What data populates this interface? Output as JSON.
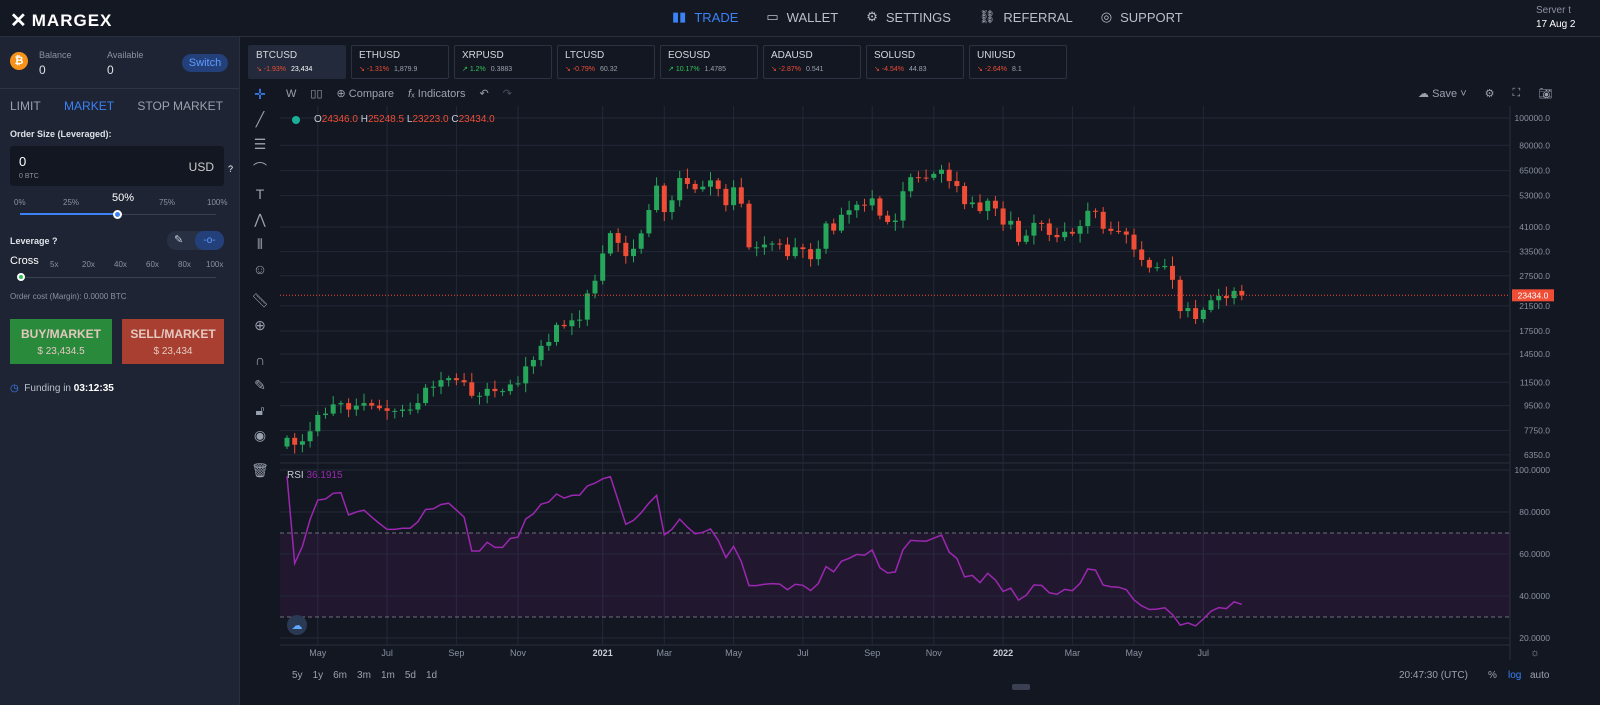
{
  "header": {
    "brand": "MARGEX",
    "nav": [
      {
        "label": "TRADE",
        "icon": "bar-chart-icon"
      },
      {
        "label": "WALLET",
        "icon": "wallet-icon"
      },
      {
        "label": "SETTINGS",
        "icon": "gear-icon"
      },
      {
        "label": "REFERRAL",
        "icon": "link-icon"
      },
      {
        "label": "SUPPORT",
        "icon": "lifebuoy-icon"
      }
    ],
    "server_label": "Server t",
    "server_date": "17 Aug 2"
  },
  "account": {
    "balance_label": "Balance",
    "balance": "0",
    "available_label": "Available",
    "available": "0",
    "switch": "Switch"
  },
  "order": {
    "tabs": [
      "LIMIT",
      "MARKET",
      "STOP MARKET"
    ],
    "size_label": "Order Size (Leveraged):",
    "size_value": "0",
    "size_btc": "0 BTC",
    "currency": "USD",
    "help": "?",
    "percent_marks": [
      "0%",
      "25%",
      "50%",
      "75%",
      "100%"
    ],
    "percent_value": 50,
    "leverage_label": "Leverage",
    "leverage_marks": [
      "Cross",
      "5x",
      "20x",
      "40x",
      "60x",
      "80x",
      "100x"
    ],
    "order_cost": "Order cost (Margin): 0.0000 BTC",
    "buy_label": "BUY/MARKET",
    "buy_price": "$ 23,434.5",
    "sell_label": "SELL/MARKET",
    "sell_price": "$ 23,434",
    "funding_label": "Funding in",
    "funding_time": "03:12:35"
  },
  "tickers": [
    {
      "sym": "BTCUSD",
      "chg": "-1.93%",
      "price": "23,434",
      "up": false
    },
    {
      "sym": "ETHUSD",
      "chg": "-1.31%",
      "price": "1,879.9",
      "up": false
    },
    {
      "sym": "XRPUSD",
      "chg": "1.2%",
      "price": "0.3883",
      "up": true
    },
    {
      "sym": "LTCUSD",
      "chg": "-0.79%",
      "price": "60.32",
      "up": false
    },
    {
      "sym": "EOSUSD",
      "chg": "10.17%",
      "price": "1.4785",
      "up": true
    },
    {
      "sym": "ADAUSD",
      "chg": "-2.87%",
      "price": "0.541",
      "up": false
    },
    {
      "sym": "SOLUSD",
      "chg": "-4.54%",
      "price": "44.83",
      "up": false
    },
    {
      "sym": "UNIUSD",
      "chg": "-2.64%",
      "price": "8.1",
      "up": false
    }
  ],
  "chart_toolbar": {
    "interval": "W",
    "compare": "Compare",
    "indicators": "Indicators",
    "save": "Save"
  },
  "legend": {
    "o": "24346.0",
    "h": "25248.5",
    "l": "23223.0",
    "c": "23434.0"
  },
  "rsi": {
    "label": "RSI",
    "value": "36.1915"
  },
  "bottom": {
    "ranges": [
      "5y",
      "1y",
      "6m",
      "3m",
      "1m",
      "5d",
      "1d"
    ],
    "time": "20:47:30 (UTC)",
    "pct": "%",
    "log": "log",
    "auto": "auto"
  },
  "colors": {
    "up": "#26a65b",
    "down": "#ef4d35",
    "rsi": "#9c27b0",
    "accent": "#3b82f6"
  },
  "chart_data": {
    "type": "candlestick",
    "scale": "log",
    "last_price": "23434.0",
    "last_value": 23434,
    "price_ticks": [
      "100000.0",
      "80000.0",
      "65000.0",
      "53000.0",
      "41000.0",
      "33500.0",
      "27500.0",
      "21500.0",
      "17500.0",
      "14500.0",
      "11500.0",
      "9500.0",
      "7750.0",
      "6350.0"
    ],
    "rsi_ticks": [
      "100.0000",
      "80.0000",
      "60.0000",
      "40.0000",
      "20.0000"
    ],
    "time_ticks": [
      {
        "label": "May",
        "w": 4
      },
      {
        "label": "Jul",
        "w": 13
      },
      {
        "label": "Sep",
        "w": 22
      },
      {
        "label": "Nov",
        "w": 30
      },
      {
        "label": "2021",
        "w": 41
      },
      {
        "label": "Mar",
        "w": 49
      },
      {
        "label": "May",
        "w": 58
      },
      {
        "label": "Jul",
        "w": 67
      },
      {
        "label": "Sep",
        "w": 76
      },
      {
        "label": "Nov",
        "w": 84
      },
      {
        "label": "2022",
        "w": 93
      },
      {
        "label": "Mar",
        "w": 102
      },
      {
        "label": "May",
        "w": 110
      },
      {
        "label": "Jul",
        "w": 119
      }
    ],
    "open0": 6800,
    "closes": [
      7300,
      6900,
      7100,
      7700,
      8800,
      8900,
      9600,
      9700,
      9200,
      9500,
      9700,
      9500,
      9300,
      9100,
      9100,
      9200,
      9200,
      9700,
      11000,
      11100,
      11700,
      11900,
      11700,
      11500,
      10300,
      10300,
      10900,
      10700,
      10700,
      11300,
      11400,
      13100,
      13800,
      15500,
      16000,
      18400,
      18200,
      19100,
      19200,
      23800,
      26400,
      33000,
      39000,
      36000,
      32300,
      34300,
      38900,
      47100,
      57500,
      46300,
      51000,
      61200,
      58300,
      55800,
      57000,
      60000,
      56000,
      49000,
      56700,
      49600,
      34700,
      34700,
      35500,
      35800,
      35500,
      32300,
      34700,
      34200,
      31500,
      34300,
      42200,
      39800,
      45300,
      47000,
      49200,
      48900,
      51800,
      45000,
      42700,
      43200,
      54900,
      61600,
      61400,
      61300,
      63300,
      65500,
      59700,
      57300,
      49400,
      50100,
      46700,
      50800,
      47700,
      41800,
      43100,
      36300,
      38200,
      42400,
      42200,
      38400,
      37700,
      39400,
      38800,
      41300,
      46800,
      46400,
      40400,
      39700,
      39500,
      38500,
      34100,
      31300,
      29400,
      29500,
      29800,
      26600,
      20600,
      21100,
      19300,
      20800,
      22500,
      23300,
      22900,
      24300,
      23434
    ]
  }
}
